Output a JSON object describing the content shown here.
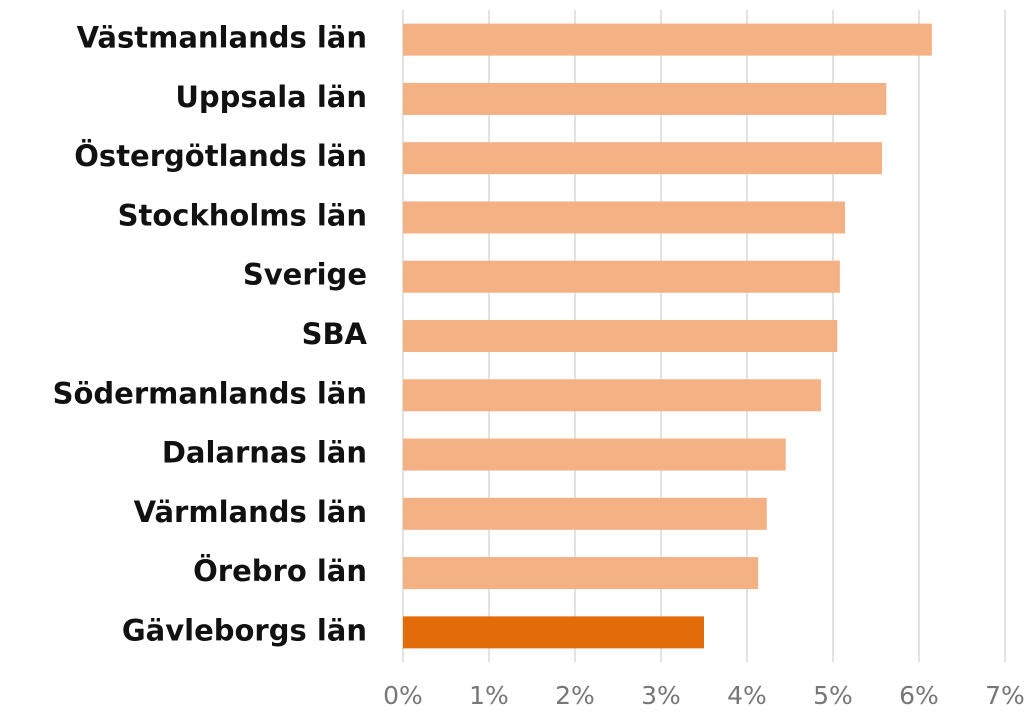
{
  "chart_data": {
    "type": "barh",
    "categories": [
      "Västmanlands län",
      "Uppsala län",
      "Östergötlands län",
      "Stockholms län",
      "Sverige",
      "SBA",
      "Södermanlands län",
      "Dalarnas län",
      "Värmlands län",
      "Örebro län",
      "Gävleborgs län"
    ],
    "values": [
      6.15,
      5.62,
      5.57,
      5.14,
      5.08,
      5.05,
      4.86,
      4.45,
      4.23,
      4.13,
      3.5
    ],
    "colors": [
      "#f4b183",
      "#f4b183",
      "#f4b183",
      "#f4b183",
      "#f4b183",
      "#f4b183",
      "#f4b183",
      "#f4b183",
      "#f4b183",
      "#f4b183",
      "#e26b0a"
    ],
    "xlim": [
      0,
      7
    ],
    "xticks": [
      {
        "value": 0,
        "label": "0%"
      },
      {
        "value": 1,
        "label": "1%"
      },
      {
        "value": 2,
        "label": "2%"
      },
      {
        "value": 3,
        "label": "3%"
      },
      {
        "value": 4,
        "label": "4%"
      },
      {
        "value": 5,
        "label": "5%"
      },
      {
        "value": 6,
        "label": "6%"
      },
      {
        "value": 7,
        "label": "7%"
      }
    ],
    "grid": true
  }
}
